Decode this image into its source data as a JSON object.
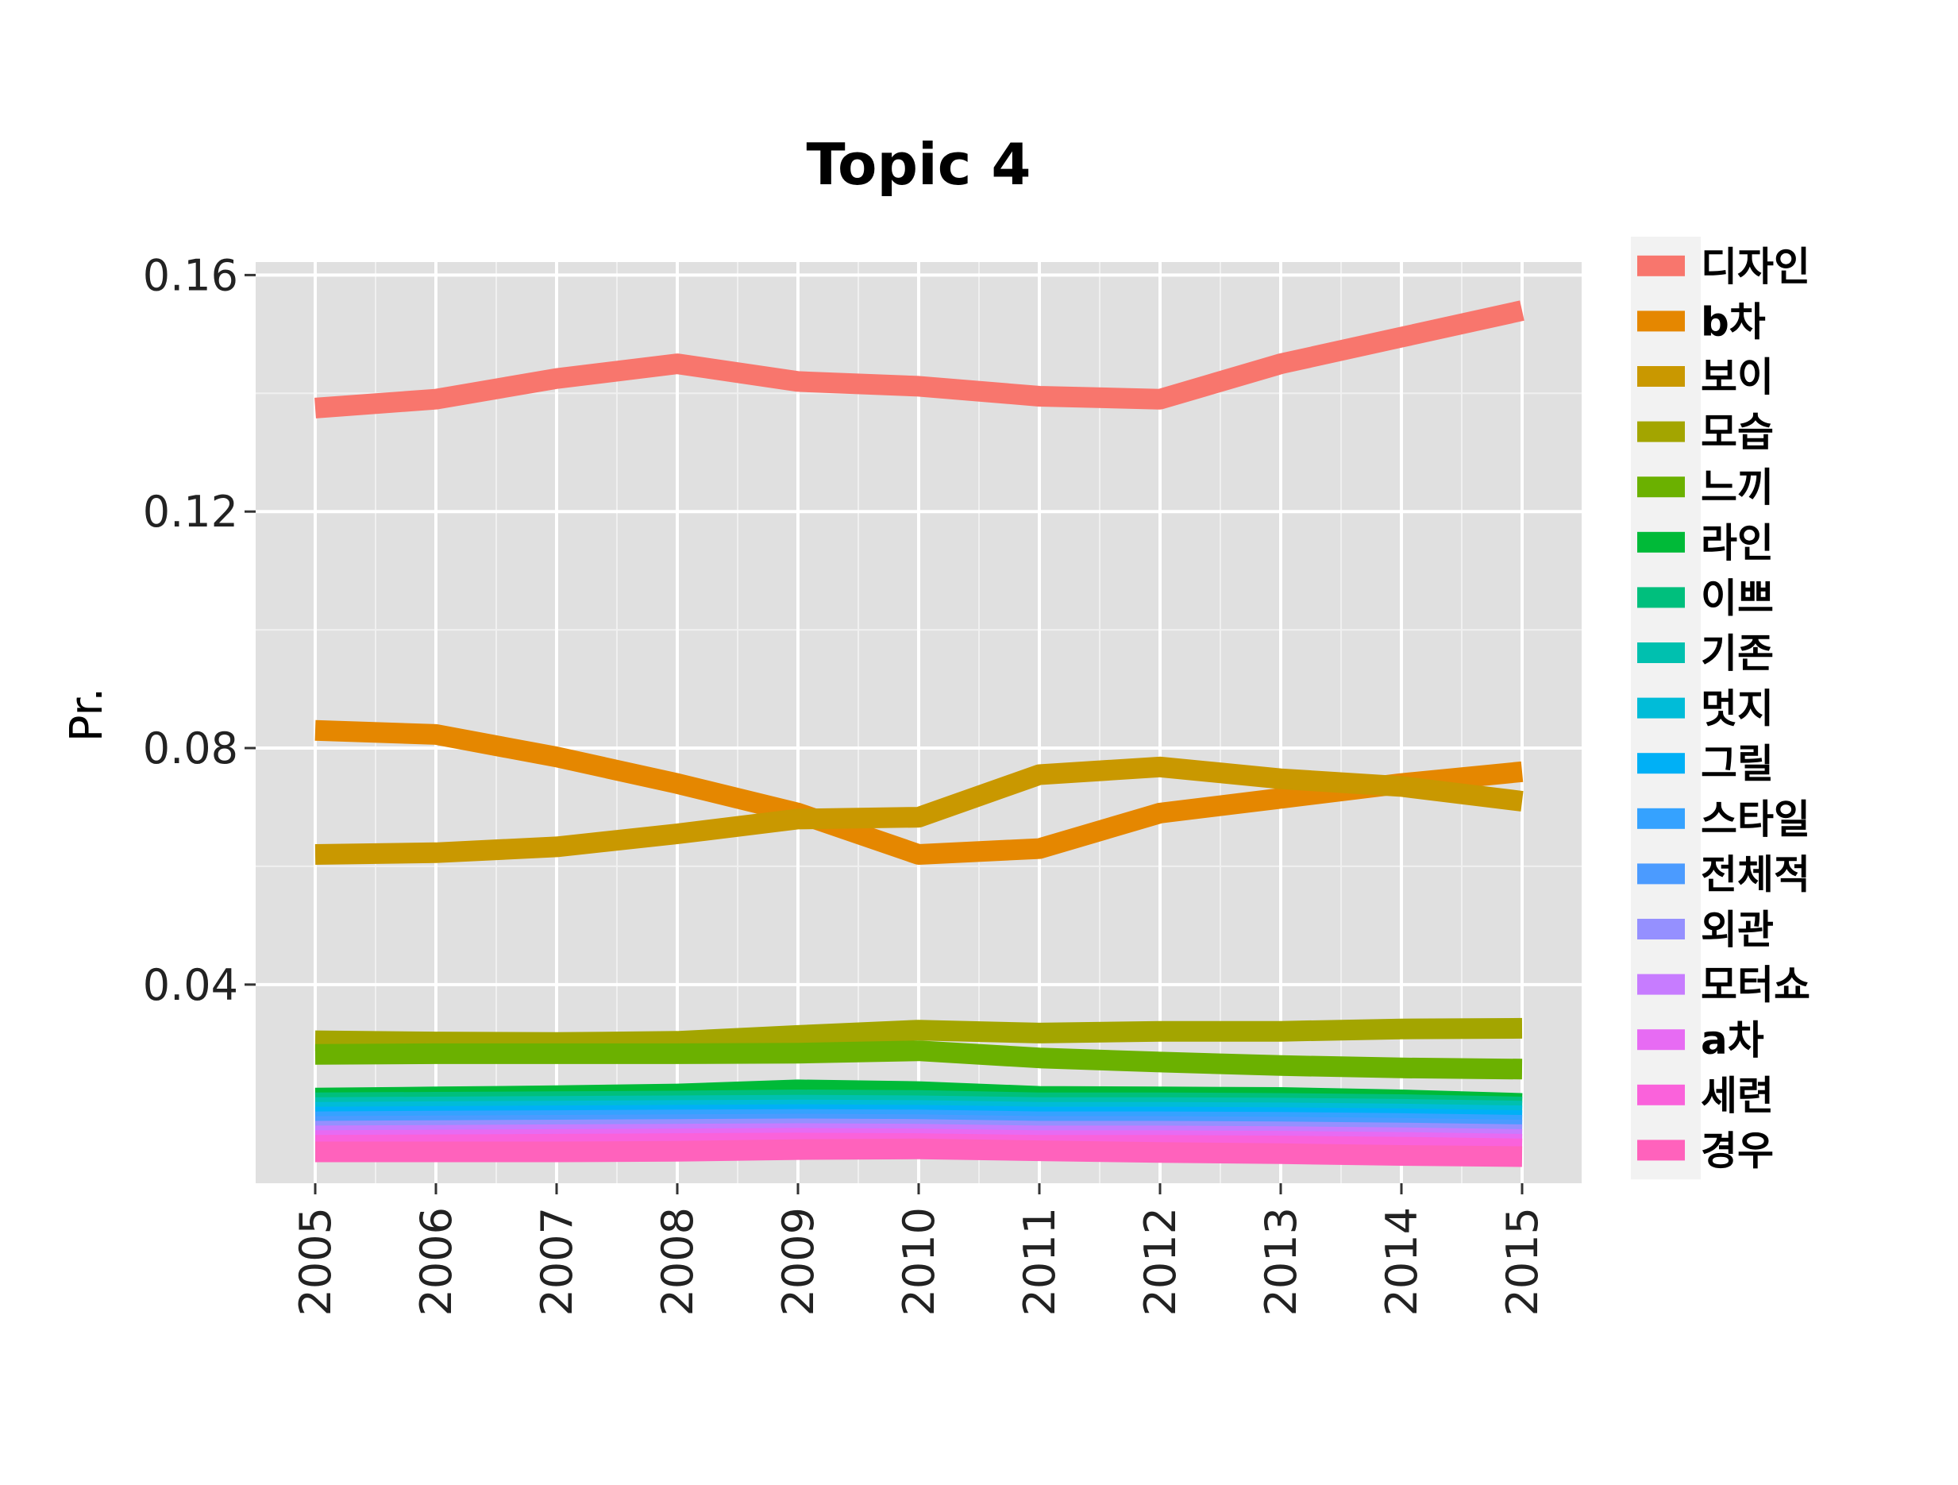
{
  "chart_data": {
    "type": "line",
    "title": "Topic 4",
    "xlabel": "",
    "ylabel": "Pr.",
    "x": [
      "2005",
      "2006",
      "2007",
      "2008",
      "2009",
      "2010",
      "2011",
      "2012",
      "2013",
      "2014",
      "2015"
    ],
    "ylim": [
      0.0064,
      0.1622
    ],
    "yticks": [
      "0.04",
      "0.08",
      "0.12",
      "0.16"
    ],
    "ytick_values": [
      0.04,
      0.08,
      0.12,
      0.16
    ],
    "grid": true,
    "legend_position": "right",
    "series": [
      {
        "name": "디자인",
        "color": "#F8766D",
        "values": [
          0.1375,
          0.139,
          0.1425,
          0.145,
          0.142,
          0.1412,
          0.1395,
          0.139,
          0.145,
          0.1495,
          0.154
        ]
      },
      {
        "name": "b차",
        "color": "#E58700",
        "values": [
          0.083,
          0.0823,
          0.0785,
          0.074,
          0.069,
          0.062,
          0.063,
          0.069,
          0.0715,
          0.074,
          0.076
        ]
      },
      {
        "name": "보이",
        "color": "#C99800",
        "values": [
          0.062,
          0.0623,
          0.0633,
          0.0655,
          0.068,
          0.0683,
          0.0755,
          0.0768,
          0.0748,
          0.0735,
          0.071
        ]
      },
      {
        "name": "모습",
        "color": "#A3A500",
        "values": [
          0.0305,
          0.0303,
          0.0302,
          0.0304,
          0.0314,
          0.0323,
          0.0318,
          0.0321,
          0.0321,
          0.0325,
          0.0326
        ]
      },
      {
        "name": "느끼",
        "color": "#6BB100",
        "values": [
          0.0282,
          0.0283,
          0.0283,
          0.0283,
          0.0284,
          0.0288,
          0.0276,
          0.0269,
          0.0263,
          0.0259,
          0.0257
        ]
      },
      {
        "name": "라인",
        "color": "#00BA38",
        "values": [
          0.0208,
          0.021,
          0.0212,
          0.0215,
          0.0222,
          0.0219,
          0.0211,
          0.021,
          0.0209,
          0.0205,
          0.0199
        ]
      },
      {
        "name": "이쁘",
        "color": "#00BF7D",
        "values": [
          0.02,
          0.0201,
          0.0202,
          0.0203,
          0.0205,
          0.0204,
          0.02,
          0.02,
          0.0199,
          0.0197,
          0.0193
        ]
      },
      {
        "name": "기존",
        "color": "#00C0AF",
        "values": [
          0.0192,
          0.0193,
          0.0194,
          0.0195,
          0.0196,
          0.0195,
          0.0192,
          0.0192,
          0.0191,
          0.0189,
          0.0186
        ]
      },
      {
        "name": "멋지",
        "color": "#00BCD8",
        "values": [
          0.0184,
          0.0185,
          0.0186,
          0.0187,
          0.0188,
          0.0187,
          0.0184,
          0.0184,
          0.0183,
          0.0181,
          0.0178
        ]
      },
      {
        "name": "그릴",
        "color": "#00B0F6",
        "values": [
          0.0176,
          0.0177,
          0.0178,
          0.0179,
          0.018,
          0.0179,
          0.0176,
          0.0176,
          0.0175,
          0.0173,
          0.017
        ]
      },
      {
        "name": "스타일",
        "color": "#35A2FF",
        "values": [
          0.0168,
          0.0169,
          0.017,
          0.0171,
          0.0172,
          0.0171,
          0.0168,
          0.0168,
          0.0167,
          0.0165,
          0.0162
        ]
      },
      {
        "name": "전체적",
        "color": "#4B9BFF",
        "values": [
          0.016,
          0.0161,
          0.0162,
          0.0163,
          0.0164,
          0.0163,
          0.016,
          0.016,
          0.0159,
          0.0157,
          0.0154
        ]
      },
      {
        "name": "외관",
        "color": "#9590FF",
        "values": [
          0.0152,
          0.0153,
          0.0154,
          0.0155,
          0.0156,
          0.0155,
          0.0152,
          0.0152,
          0.0151,
          0.0149,
          0.0146
        ]
      },
      {
        "name": "모터쇼",
        "color": "#C77CFF",
        "values": [
          0.0144,
          0.0145,
          0.0146,
          0.0147,
          0.0148,
          0.0147,
          0.0144,
          0.0144,
          0.0143,
          0.0141,
          0.0138
        ]
      },
      {
        "name": "a차",
        "color": "#E76BF3",
        "values": [
          0.0136,
          0.0137,
          0.0138,
          0.0139,
          0.014,
          0.0139,
          0.0136,
          0.0136,
          0.0135,
          0.0133,
          0.013
        ]
      },
      {
        "name": "세련",
        "color": "#FA62DB",
        "values": [
          0.0128,
          0.0129,
          0.013,
          0.0131,
          0.0132,
          0.0131,
          0.0128,
          0.0128,
          0.0127,
          0.0125,
          0.0122
        ]
      },
      {
        "name": "경우",
        "color": "#FF62BC",
        "values": [
          0.0117,
          0.0117,
          0.0117,
          0.0118,
          0.0121,
          0.0122,
          0.0119,
          0.0116,
          0.0114,
          0.0111,
          0.0109
        ]
      }
    ]
  }
}
